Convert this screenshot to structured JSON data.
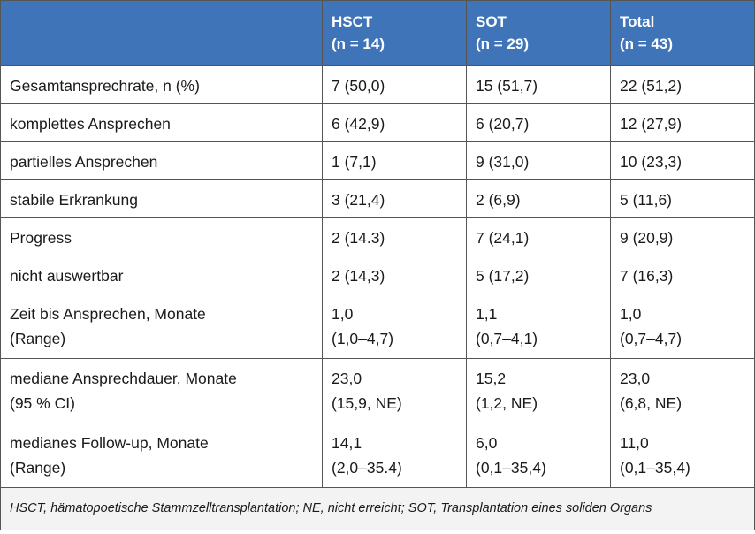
{
  "header": {
    "columns": [
      {
        "name": "",
        "n": ""
      },
      {
        "name": "HSCT",
        "n": "(n = 14)"
      },
      {
        "name": "SOT",
        "n": "(n = 29)"
      },
      {
        "name": "Total",
        "n": "(n = 43)"
      }
    ]
  },
  "rows": [
    {
      "label": [
        "Gesamtansprechrate, n (%)"
      ],
      "hsct": [
        "7 (50,0)"
      ],
      "sot": [
        "15 (51,7)"
      ],
      "total": [
        "22 (51,2)"
      ]
    },
    {
      "label": [
        "komplettes Ansprechen"
      ],
      "hsct": [
        "6 (42,9)"
      ],
      "sot": [
        "6 (20,7)"
      ],
      "total": [
        "12 (27,9)"
      ]
    },
    {
      "label": [
        "partielles Ansprechen"
      ],
      "hsct": [
        "1 (7,1)"
      ],
      "sot": [
        "9 (31,0)"
      ],
      "total": [
        "10 (23,3)"
      ]
    },
    {
      "label": [
        "stabile Erkrankung"
      ],
      "hsct": [
        "3 (21,4)"
      ],
      "sot": [
        "2 (6,9)"
      ],
      "total": [
        "5 (11,6)"
      ]
    },
    {
      "label": [
        "Progress"
      ],
      "hsct": [
        "2 (14.3)"
      ],
      "sot": [
        "7 (24,1)"
      ],
      "total": [
        "9 (20,9)"
      ]
    },
    {
      "label": [
        "nicht auswertbar"
      ],
      "hsct": [
        "2 (14,3)"
      ],
      "sot": [
        "5 (17,2)"
      ],
      "total": [
        "7 (16,3)"
      ]
    },
    {
      "label": [
        "Zeit bis Ansprechen, Monate",
        "(Range)"
      ],
      "hsct": [
        "1,0",
        "(1,0–4,7)"
      ],
      "sot": [
        "1,1",
        "(0,7–4,1)"
      ],
      "total": [
        "1,0",
        "(0,7–4,7)"
      ]
    },
    {
      "label": [
        "mediane Ansprechdauer, Monate",
        "(95 % CI)"
      ],
      "hsct": [
        "23,0",
        "(15,9, NE)"
      ],
      "sot": [
        "15,2",
        "(1,2, NE)"
      ],
      "total": [
        "23,0",
        "(6,8, NE)"
      ]
    },
    {
      "label": [
        "medianes Follow-up, Monate",
        "(Range)"
      ],
      "hsct": [
        "14,1",
        "(2,0–35.4)"
      ],
      "sot": [
        "6,0",
        "(0,1–35,4)"
      ],
      "total": [
        "11,0",
        "(0,1–35,4)"
      ]
    }
  ],
  "footnote": "HSCT, hämatopoetische Stammzelltransplantation; NE, nicht erreicht; SOT, Transplantation eines soliden Organs",
  "colors": {
    "header_bg": "#3f74b8",
    "header_text": "#ffffff",
    "border": "#555555",
    "footnote_bg": "#f3f3f3"
  }
}
